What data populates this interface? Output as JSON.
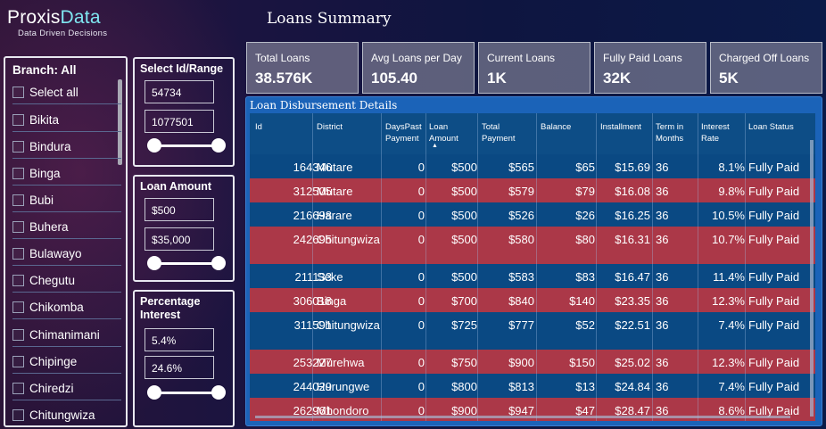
{
  "brand": {
    "name_part1": "Proxis",
    "name_part2": "Data",
    "tagline": "Data Driven Decisions"
  },
  "title": "Loans Summary",
  "kpis": [
    {
      "label": "Total Loans",
      "value": "38.576K"
    },
    {
      "label": "Avg Loans per Day",
      "value": "105.40"
    },
    {
      "label": "Current Loans",
      "value": "1K"
    },
    {
      "label": "Fully Paid Loans",
      "value": "32K"
    },
    {
      "label": "Charged Off Loans",
      "value": "5K"
    }
  ],
  "branch": {
    "title": "Branch: All",
    "items": [
      {
        "label": "Select all"
      },
      {
        "label": "Bikita"
      },
      {
        "label": "Bindura"
      },
      {
        "label": "Binga"
      },
      {
        "label": "Bubi"
      },
      {
        "label": "Buhera"
      },
      {
        "label": "Bulawayo"
      },
      {
        "label": "Chegutu"
      },
      {
        "label": "Chikomba"
      },
      {
        "label": "Chimanimani"
      },
      {
        "label": "Chipinge"
      },
      {
        "label": "Chiredzi"
      },
      {
        "label": "Chitungwiza"
      }
    ]
  },
  "filters": {
    "id_range": {
      "title": "Select Id/Range",
      "min": "54734",
      "max": "1077501"
    },
    "loan_amount": {
      "title": "Loan Amount",
      "min": "$500",
      "max": "$35,000"
    },
    "interest": {
      "title": "Percentage Interest",
      "min": "5.4%",
      "max": "24.6%"
    }
  },
  "table": {
    "title": "Loan Disbursement Details",
    "headers": [
      "Id",
      "District",
      "DaysPast Payment",
      "Loan Amount",
      "Total Payment",
      "Balance",
      "Installment",
      "Term in Months",
      "Interest Rate",
      "Loan Status"
    ],
    "rows": [
      [
        "164346",
        "Mutare",
        "0",
        "$500",
        "$565",
        "$65",
        "$15.69",
        "36",
        "8.1%",
        "Fully Paid"
      ],
      [
        "312505",
        "Mutare",
        "0",
        "$500",
        "$579",
        "$79",
        "$16.08",
        "36",
        "9.8%",
        "Fully Paid"
      ],
      [
        "216698",
        "Harare",
        "0",
        "$500",
        "$526",
        "$26",
        "$16.25",
        "36",
        "10.5%",
        "Fully Paid"
      ],
      [
        "242695",
        "Chitungwiza",
        "0",
        "$500",
        "$580",
        "$80",
        "$16.31",
        "36",
        "10.7%",
        "Fully Paid"
      ],
      [
        "211133",
        "Seke",
        "0",
        "$500",
        "$583",
        "$83",
        "$16.47",
        "36",
        "11.4%",
        "Fully Paid"
      ],
      [
        "306018",
        "Binga",
        "0",
        "$700",
        "$840",
        "$140",
        "$23.35",
        "36",
        "12.3%",
        "Fully Paid"
      ],
      [
        "311591",
        "Chitungwiza",
        "0",
        "$725",
        "$777",
        "$52",
        "$22.51",
        "36",
        "7.4%",
        "Fully Paid"
      ],
      [
        "253227",
        "Murehwa",
        "0",
        "$750",
        "$900",
        "$150",
        "$25.02",
        "36",
        "12.3%",
        "Fully Paid"
      ],
      [
        "244029",
        "Hurungwe",
        "0",
        "$800",
        "$813",
        "$13",
        "$24.84",
        "36",
        "7.4%",
        "Fully Paid"
      ],
      [
        "262961",
        "Mhondoro",
        "0",
        "$900",
        "$947",
        "$47",
        "$28.47",
        "36",
        "8.6%",
        "Fully Paid"
      ]
    ]
  },
  "colors": {
    "row_blue": "#0a4983",
    "row_red": "#ab3848",
    "brand_accent": "#7fe6f0"
  }
}
